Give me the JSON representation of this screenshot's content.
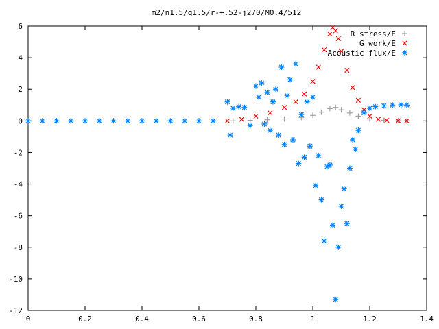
{
  "chart_data": {
    "type": "scatter",
    "title": "m2/n1.5/q1.5/r-+.52-j270/M0.4/512",
    "xlabel": "",
    "ylabel": "",
    "xlim": [
      0,
      1.4
    ],
    "ylim": [
      -12,
      6
    ],
    "x_ticks": [
      "0",
      "0.2",
      "0.4",
      "0.6",
      "0.8",
      "1",
      "1.2",
      "1.4"
    ],
    "y_ticks": [
      "6",
      "4",
      "2",
      "0",
      "-2",
      "-4",
      "-6",
      "-8",
      "-10",
      "-12"
    ],
    "grid": false,
    "legend_position": "top-right",
    "series": [
      {
        "name": "R stress/E",
        "marker": "plus",
        "color": "#a0a0a0",
        "x": [
          0.72,
          0.78,
          0.84,
          0.9,
          0.96,
          1.0,
          1.03,
          1.06,
          1.08,
          1.1,
          1.13,
          1.16,
          1.2,
          1.25,
          1.3,
          1.33
        ],
        "y": [
          0.0,
          0.03,
          0.07,
          0.12,
          0.22,
          0.35,
          0.55,
          0.78,
          0.85,
          0.7,
          0.5,
          0.3,
          0.12,
          0.04,
          0.01,
          0.0
        ]
      },
      {
        "name": "G work/E",
        "marker": "cross",
        "color": "#ff0000",
        "x": [
          0.7,
          0.75,
          0.8,
          0.85,
          0.9,
          0.94,
          0.97,
          1.0,
          1.02,
          1.04,
          1.06,
          1.07,
          1.08,
          1.09,
          1.1,
          1.12,
          1.14,
          1.16,
          1.18,
          1.2,
          1.23,
          1.26,
          1.3,
          1.33
        ],
        "y": [
          0.0,
          0.1,
          0.3,
          0.5,
          0.85,
          1.2,
          1.7,
          2.5,
          3.4,
          4.5,
          5.5,
          5.9,
          5.7,
          5.2,
          4.4,
          3.2,
          2.1,
          1.3,
          0.7,
          0.3,
          0.1,
          0.03,
          0.01,
          0.0
        ]
      },
      {
        "name": "Acoustic flux/E",
        "marker": "star",
        "color": "#0080ff",
        "x": [
          0.0,
          0.05,
          0.1,
          0.15,
          0.2,
          0.25,
          0.3,
          0.35,
          0.4,
          0.45,
          0.5,
          0.55,
          0.6,
          0.65,
          0.7,
          0.71,
          0.72,
          0.74,
          0.76,
          0.78,
          0.8,
          0.81,
          0.82,
          0.83,
          0.84,
          0.85,
          0.86,
          0.87,
          0.88,
          0.89,
          0.9,
          0.91,
          0.92,
          0.93,
          0.94,
          0.95,
          0.96,
          0.97,
          0.98,
          0.99,
          1.0,
          1.01,
          1.02,
          1.03,
          1.04,
          1.05,
          1.06,
          1.07,
          1.08,
          1.09,
          1.1,
          1.11,
          1.12,
          1.13,
          1.14,
          1.15,
          1.16,
          1.18,
          1.2,
          1.22,
          1.25,
          1.28,
          1.31,
          1.33
        ],
        "y": [
          0.0,
          0.0,
          0.0,
          0.0,
          0.0,
          0.0,
          0.0,
          0.0,
          0.0,
          0.0,
          0.0,
          0.0,
          0.0,
          0.0,
          1.2,
          -0.9,
          0.8,
          0.9,
          0.85,
          -0.3,
          2.2,
          1.5,
          2.4,
          -0.2,
          1.8,
          -0.6,
          1.2,
          2.0,
          -0.9,
          3.4,
          -1.5,
          1.6,
          2.6,
          -1.2,
          3.6,
          -2.7,
          0.4,
          -2.3,
          1.2,
          -1.6,
          1.5,
          -4.1,
          -2.2,
          -5.0,
          -7.6,
          -2.9,
          -2.8,
          -6.6,
          -11.3,
          -8.0,
          -5.4,
          -4.3,
          -6.5,
          -3.0,
          -1.2,
          -1.8,
          -0.6,
          0.5,
          0.8,
          0.9,
          0.95,
          1.0,
          1.02,
          1.0
        ]
      }
    ]
  }
}
